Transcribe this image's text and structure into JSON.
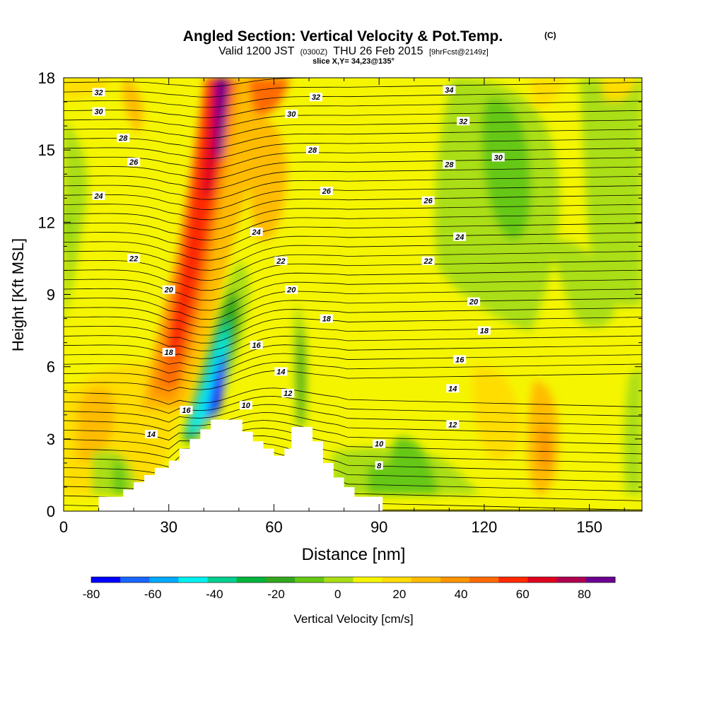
{
  "chart_data": {
    "type": "heatmap",
    "title": "Angled Section: Vertical Velocity & Pot.Temp.",
    "title_mark": "(C)",
    "subtitle": {
      "prefix": "Valid 1200 JST",
      "zulu": "(0300Z)",
      "date": "THU 26 Feb 2015",
      "fcst": "[9hrFcst@2149z]"
    },
    "slice_info": "slice X,Y= 34,23@135°",
    "xlabel": "Distance [nm]",
    "ylabel": "Height [Kft MSL]",
    "xlim": [
      0,
      165
    ],
    "ylim": [
      0,
      18
    ],
    "x_ticks": [
      "0",
      "30",
      "60",
      "90",
      "120",
      "150"
    ],
    "y_ticks": [
      "0",
      "3",
      "6",
      "9",
      "12",
      "15",
      "18"
    ],
    "colorbar": {
      "label": "Vertical Velocity [cm/s]",
      "tick_labels": [
        "-80",
        "-60",
        "-40",
        "-20",
        "0",
        "20",
        "40",
        "60",
        "80"
      ],
      "min": -80,
      "max": 90,
      "step": 10,
      "colors": [
        "#0000ff",
        "#1a66ff",
        "#00aaff",
        "#00f0f0",
        "#00d090",
        "#00b43c",
        "#33a81f",
        "#66c814",
        "#aade14",
        "#f5f500",
        "#ffdd00",
        "#ffbb00",
        "#ff9500",
        "#ff6a00",
        "#ff2a00",
        "#e00020",
        "#b00050",
        "#6a0090"
      ]
    },
    "terrain_profile": [
      [
        0,
        0
      ],
      [
        10,
        0
      ],
      [
        10,
        0.6
      ],
      [
        17,
        0.6
      ],
      [
        17,
        0.9
      ],
      [
        20,
        0.9
      ],
      [
        20,
        1.2
      ],
      [
        23,
        1.2
      ],
      [
        23,
        1.5
      ],
      [
        26,
        1.5
      ],
      [
        26,
        1.8
      ],
      [
        30,
        1.8
      ],
      [
        30,
        2.1
      ],
      [
        33,
        2.1
      ],
      [
        33,
        2.6
      ],
      [
        36,
        2.6
      ],
      [
        36,
        3.0
      ],
      [
        39,
        3.0
      ],
      [
        39,
        3.4
      ],
      [
        42,
        3.4
      ],
      [
        42,
        3.8
      ],
      [
        51,
        3.8
      ],
      [
        51,
        3.3
      ],
      [
        54,
        3.3
      ],
      [
        54,
        2.9
      ],
      [
        57,
        2.9
      ],
      [
        57,
        2.6
      ],
      [
        60,
        2.6
      ],
      [
        60,
        2.3
      ],
      [
        63,
        2.3
      ],
      [
        63,
        2.6
      ],
      [
        65,
        2.6
      ],
      [
        65,
        3.5
      ],
      [
        71,
        3.5
      ],
      [
        71,
        2.9
      ],
      [
        74,
        2.9
      ],
      [
        74,
        2.0
      ],
      [
        77,
        2.0
      ],
      [
        77,
        1.4
      ],
      [
        80,
        1.4
      ],
      [
        80,
        1.0
      ],
      [
        83,
        1.0
      ],
      [
        83,
        0.6
      ],
      [
        91,
        0.6
      ],
      [
        91,
        0
      ],
      [
        165,
        0
      ]
    ],
    "theta_contour_labels": [
      {
        "x": 10,
        "y": 17.4,
        "label": "32"
      },
      {
        "x": 10,
        "y": 16.6,
        "label": "30"
      },
      {
        "x": 17,
        "y": 15.5,
        "label": "28"
      },
      {
        "x": 20,
        "y": 14.5,
        "label": "26"
      },
      {
        "x": 10,
        "y": 13.1,
        "label": "24"
      },
      {
        "x": 20,
        "y": 10.5,
        "label": "22"
      },
      {
        "x": 30,
        "y": 9.2,
        "label": "20"
      },
      {
        "x": 30,
        "y": 6.6,
        "label": "18"
      },
      {
        "x": 35,
        "y": 4.2,
        "label": "16"
      },
      {
        "x": 25,
        "y": 3.2,
        "label": "14"
      },
      {
        "x": 72,
        "y": 17.2,
        "label": "32"
      },
      {
        "x": 65,
        "y": 16.5,
        "label": "30"
      },
      {
        "x": 71,
        "y": 15.0,
        "label": "28"
      },
      {
        "x": 75,
        "y": 13.3,
        "label": "26"
      },
      {
        "x": 55,
        "y": 11.6,
        "label": "24"
      },
      {
        "x": 62,
        "y": 10.4,
        "label": "22"
      },
      {
        "x": 65,
        "y": 9.2,
        "label": "20"
      },
      {
        "x": 75,
        "y": 8.0,
        "label": "18"
      },
      {
        "x": 55,
        "y": 6.9,
        "label": "16"
      },
      {
        "x": 62,
        "y": 5.8,
        "label": "14"
      },
      {
        "x": 64,
        "y": 4.9,
        "label": "12"
      },
      {
        "x": 52,
        "y": 4.4,
        "label": "10"
      },
      {
        "x": 110,
        "y": 17.5,
        "label": "34"
      },
      {
        "x": 114,
        "y": 16.2,
        "label": "32"
      },
      {
        "x": 124,
        "y": 14.7,
        "label": "30"
      },
      {
        "x": 110,
        "y": 14.4,
        "label": "28"
      },
      {
        "x": 104,
        "y": 12.9,
        "label": "26"
      },
      {
        "x": 113,
        "y": 11.4,
        "label": "24"
      },
      {
        "x": 104,
        "y": 10.4,
        "label": "22"
      },
      {
        "x": 117,
        "y": 8.7,
        "label": "20"
      },
      {
        "x": 120,
        "y": 7.5,
        "label": "18"
      },
      {
        "x": 113,
        "y": 6.3,
        "label": "16"
      },
      {
        "x": 111,
        "y": 5.1,
        "label": "14"
      },
      {
        "x": 111,
        "y": 3.6,
        "label": "12"
      },
      {
        "x": 90,
        "y": 2.8,
        "label": "10"
      },
      {
        "x": 90,
        "y": 1.9,
        "label": "8"
      }
    ]
  }
}
